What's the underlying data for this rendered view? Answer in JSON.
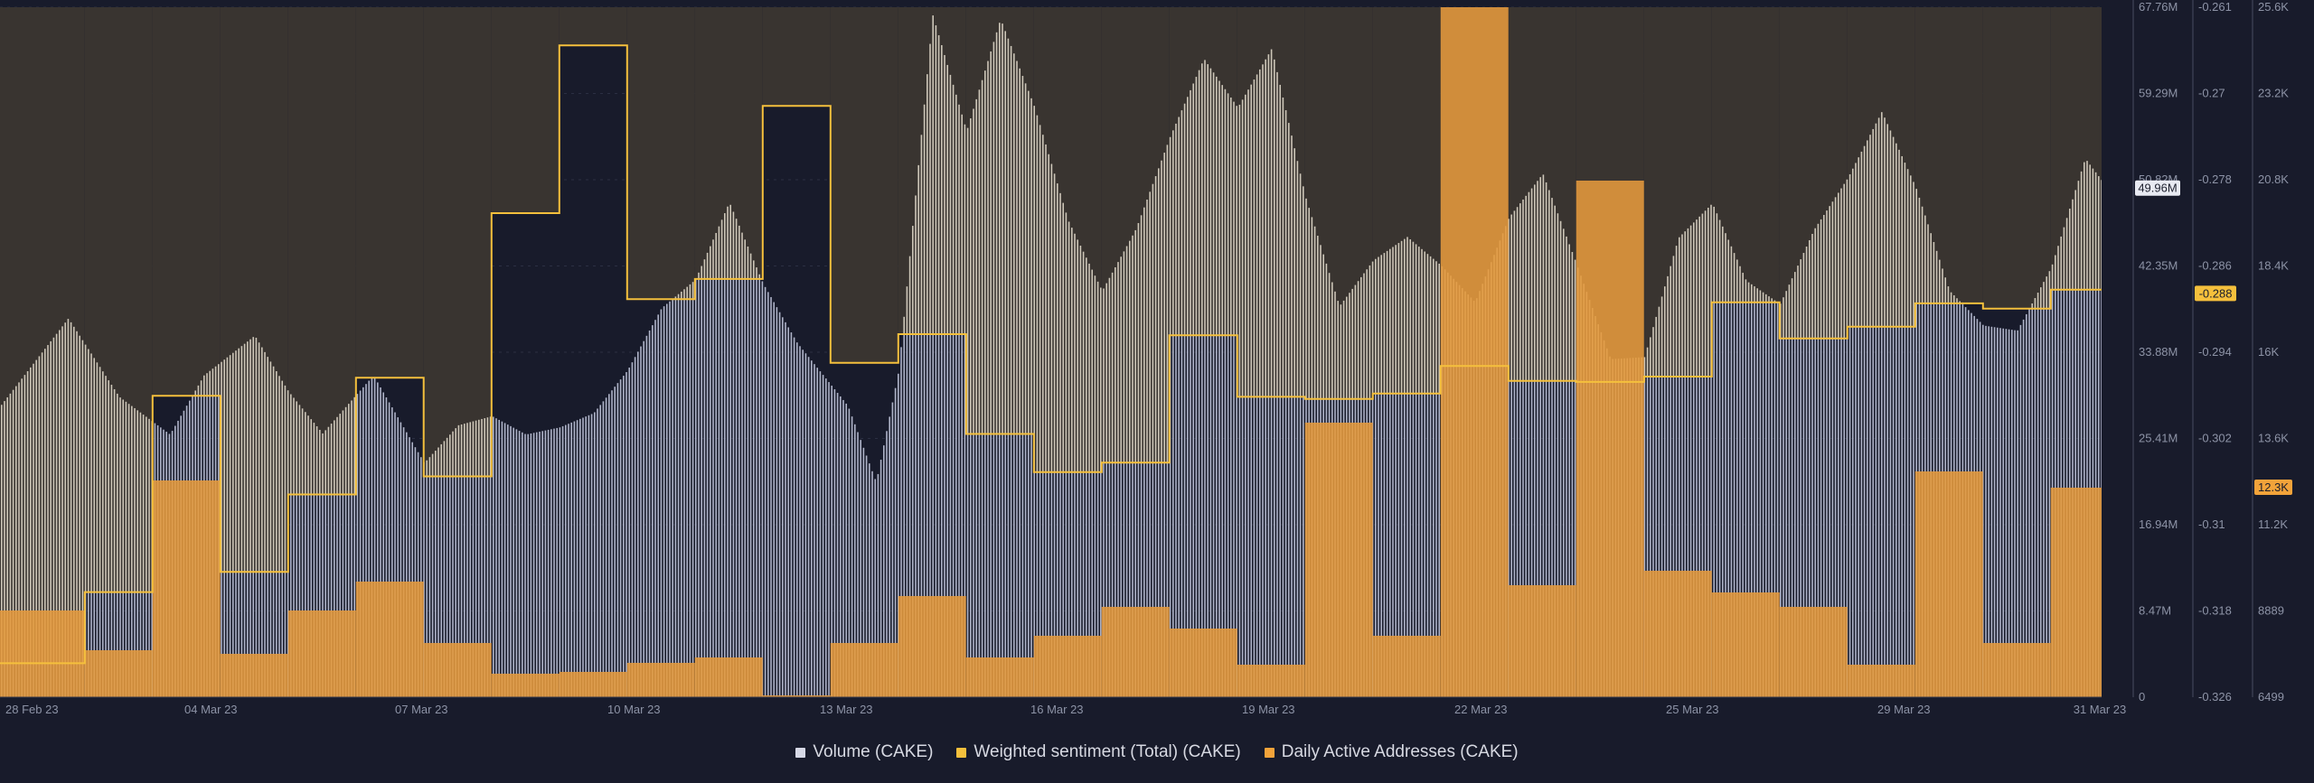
{
  "chart_data": {
    "type": "bar",
    "title": "",
    "x_ticks": [
      "28 Feb 23",
      "04 Mar 23",
      "07 Mar 23",
      "10 Mar 23",
      "13 Mar 23",
      "16 Mar 23",
      "19 Mar 23",
      "22 Mar 23",
      "25 Mar 23",
      "29 Mar 23",
      "31 Mar 23"
    ],
    "x_range": [
      "2023-02-28",
      "2023-03-31"
    ],
    "axes": {
      "volume": {
        "ticks": [
          "67.76M",
          "59.29M",
          "50.82M",
          "42.35M",
          "33.88M",
          "25.41M",
          "16.94M",
          "8.47M",
          "0"
        ],
        "ylim": [
          0,
          67.76
        ],
        "unit": "M"
      },
      "sentiment": {
        "ticks": [
          "-0.261",
          "-0.27",
          "-0.278",
          "-0.286",
          "-0.294",
          "-0.302",
          "-0.31",
          "-0.318",
          "-0.326"
        ],
        "ylim": [
          -0.326,
          -0.261
        ]
      },
      "daa": {
        "ticks": [
          "25.6K",
          "23.2K",
          "20.8K",
          "18.4K",
          "16K",
          "13.6K",
          "11.2K",
          "8889",
          "6499"
        ],
        "ylim": [
          6499,
          25600
        ]
      }
    },
    "current_labels": {
      "volume": "49.96M",
      "sentiment": "-0.288",
      "daa": "12.3K"
    },
    "legend": [
      {
        "name": "Volume (CAKE)",
        "color": "#d6d8e6"
      },
      {
        "name": "Weighted sentiment (Total) (CAKE)",
        "color": "#f5c03c"
      },
      {
        "name": "Daily Active Addresses (CAKE)",
        "color": "#f2a33a"
      }
    ],
    "sentiment_series": [
      {
        "from": "2023-02-28T00:00",
        "to": "2023-03-01T06:00",
        "value": -0.3228
      },
      {
        "from": "2023-03-01T06:00",
        "to": "2023-03-02T06:00",
        "value": -0.3161
      },
      {
        "from": "2023-03-02T06:00",
        "to": "2023-03-03T06:00",
        "value": -0.2976
      },
      {
        "from": "2023-03-03T06:00",
        "to": "2023-03-04T06:00",
        "value": -0.3142
      },
      {
        "from": "2023-03-04T06:00",
        "to": "2023-03-05T06:00",
        "value": -0.3069
      },
      {
        "from": "2023-03-05T06:00",
        "to": "2023-03-06T06:00",
        "value": -0.2959
      },
      {
        "from": "2023-03-06T06:00",
        "to": "2023-03-07T06:00",
        "value": -0.3052
      },
      {
        "from": "2023-03-07T06:00",
        "to": "2023-03-08T06:00",
        "value": -0.2804
      },
      {
        "from": "2023-03-08T06:00",
        "to": "2023-03-09T06:00",
        "value": -0.2646
      },
      {
        "from": "2023-03-09T06:00",
        "to": "2023-03-10T06:00",
        "value": -0.2885
      },
      {
        "from": "2023-03-10T06:00",
        "to": "2023-03-11T06:00",
        "value": -0.2866
      },
      {
        "from": "2023-03-11T06:00",
        "to": "2023-03-12T06:00",
        "value": -0.2703
      },
      {
        "from": "2023-03-12T06:00",
        "to": "2023-03-13T06:00",
        "value": -0.2945
      },
      {
        "from": "2023-03-13T06:00",
        "to": "2023-03-14T06:00",
        "value": -0.2918
      },
      {
        "from": "2023-03-14T06:00",
        "to": "2023-03-15T06:00",
        "value": -0.3012
      },
      {
        "from": "2023-03-15T06:00",
        "to": "2023-03-16T06:00",
        "value": -0.3048
      },
      {
        "from": "2023-03-16T06:00",
        "to": "2023-03-17T06:00",
        "value": -0.3039
      },
      {
        "from": "2023-03-17T06:00",
        "to": "2023-03-18T06:00",
        "value": -0.2919
      },
      {
        "from": "2023-03-18T06:00",
        "to": "2023-03-19T06:00",
        "value": -0.2977
      },
      {
        "from": "2023-03-19T06:00",
        "to": "2023-03-20T06:00",
        "value": -0.2979
      },
      {
        "from": "2023-03-20T06:00",
        "to": "2023-03-21T06:00",
        "value": -0.2974
      },
      {
        "from": "2023-03-21T06:00",
        "to": "2023-03-22T06:00",
        "value": -0.2948
      },
      {
        "from": "2023-03-22T06:00",
        "to": "2023-03-23T06:00",
        "value": -0.2962
      },
      {
        "from": "2023-03-23T06:00",
        "to": "2023-03-24T06:00",
        "value": -0.2963
      },
      {
        "from": "2023-03-24T06:00",
        "to": "2023-03-25T06:00",
        "value": -0.2958
      },
      {
        "from": "2023-03-25T06:00",
        "to": "2023-03-26T06:00",
        "value": -0.2888
      },
      {
        "from": "2023-03-26T06:00",
        "to": "2023-03-27T06:00",
        "value": -0.2922
      },
      {
        "from": "2023-03-27T06:00",
        "to": "2023-03-28T06:00",
        "value": -0.2911
      },
      {
        "from": "2023-03-28T06:00",
        "to": "2023-03-29T06:00",
        "value": -0.2889
      },
      {
        "from": "2023-03-29T06:00",
        "to": "2023-03-30T06:00",
        "value": -0.2894
      },
      {
        "from": "2023-03-30T06:00",
        "to": "2023-03-31T00:00",
        "value": -0.2876
      }
    ],
    "daa_series": [
      {
        "from": "2023-02-28T00:00",
        "to": "2023-03-01T06:00",
        "value": 8900
      },
      {
        "from": "2023-03-01T06:00",
        "to": "2023-03-02T06:00",
        "value": 7800
      },
      {
        "from": "2023-03-02T06:00",
        "to": "2023-03-03T06:00",
        "value": 12500
      },
      {
        "from": "2023-03-03T06:00",
        "to": "2023-03-04T06:00",
        "value": 7700
      },
      {
        "from": "2023-03-04T06:00",
        "to": "2023-03-05T06:00",
        "value": 8900
      },
      {
        "from": "2023-03-05T06:00",
        "to": "2023-03-06T06:00",
        "value": 9700
      },
      {
        "from": "2023-03-06T06:00",
        "to": "2023-03-07T06:00",
        "value": 8000
      },
      {
        "from": "2023-03-07T06:00",
        "to": "2023-03-08T06:00",
        "value": 7150
      },
      {
        "from": "2023-03-08T06:00",
        "to": "2023-03-09T06:00",
        "value": 7200
      },
      {
        "from": "2023-03-09T06:00",
        "to": "2023-03-10T06:00",
        "value": 7450
      },
      {
        "from": "2023-03-10T06:00",
        "to": "2023-03-11T06:00",
        "value": 7600
      },
      {
        "from": "2023-03-11T06:00",
        "to": "2023-03-12T06:00",
        "value": 6550
      },
      {
        "from": "2023-03-12T06:00",
        "to": "2023-03-13T06:00",
        "value": 8000
      },
      {
        "from": "2023-03-13T06:00",
        "to": "2023-03-14T06:00",
        "value": 9300
      },
      {
        "from": "2023-03-14T06:00",
        "to": "2023-03-15T06:00",
        "value": 7600
      },
      {
        "from": "2023-03-15T06:00",
        "to": "2023-03-16T06:00",
        "value": 8200
      },
      {
        "from": "2023-03-16T06:00",
        "to": "2023-03-17T06:00",
        "value": 9000
      },
      {
        "from": "2023-03-17T06:00",
        "to": "2023-03-18T06:00",
        "value": 8400
      },
      {
        "from": "2023-03-18T06:00",
        "to": "2023-03-19T06:00",
        "value": 7400
      },
      {
        "from": "2023-03-19T06:00",
        "to": "2023-03-20T06:00",
        "value": 14100
      },
      {
        "from": "2023-03-20T06:00",
        "to": "2023-03-21T06:00",
        "value": 8200
      },
      {
        "from": "2023-03-21T06:00",
        "to": "2023-03-22T06:00",
        "value": 25600
      },
      {
        "from": "2023-03-22T06:00",
        "to": "2023-03-23T06:00",
        "value": 9600
      },
      {
        "from": "2023-03-23T06:00",
        "to": "2023-03-24T06:00",
        "value": 20800
      },
      {
        "from": "2023-03-24T06:00",
        "to": "2023-03-25T06:00",
        "value": 10000
      },
      {
        "from": "2023-03-25T06:00",
        "to": "2023-03-26T06:00",
        "value": 9400
      },
      {
        "from": "2023-03-26T06:00",
        "to": "2023-03-27T06:00",
        "value": 9000
      },
      {
        "from": "2023-03-27T06:00",
        "to": "2023-03-28T06:00",
        "value": 7400
      },
      {
        "from": "2023-03-28T06:00",
        "to": "2023-03-29T06:00",
        "value": 12750
      },
      {
        "from": "2023-03-29T06:00",
        "to": "2023-03-30T06:00",
        "value": 8000
      },
      {
        "from": "2023-03-30T06:00",
        "to": "2023-03-31T00:00",
        "value": 12300
      }
    ],
    "volume_series": [
      {
        "date": "2023-02-28T00:00",
        "value": 28.6
      },
      {
        "date": "2023-03-01T00:00",
        "value": 37.2
      },
      {
        "date": "2023-03-01T18:00",
        "value": 29.5
      },
      {
        "date": "2023-03-02T12:00",
        "value": 25.8
      },
      {
        "date": "2023-03-03T00:00",
        "value": 31.6
      },
      {
        "date": "2023-03-03T18:00",
        "value": 35.5
      },
      {
        "date": "2023-03-04T06:00",
        "value": 30.0
      },
      {
        "date": "2023-03-04T18:00",
        "value": 25.9
      },
      {
        "date": "2023-03-05T12:00",
        "value": 31.6
      },
      {
        "date": "2023-03-06T06:00",
        "value": 23.0
      },
      {
        "date": "2023-03-06T18:00",
        "value": 26.7
      },
      {
        "date": "2023-03-07T06:00",
        "value": 27.6
      },
      {
        "date": "2023-03-07T18:00",
        "value": 25.8
      },
      {
        "date": "2023-03-08T06:00",
        "value": 26.5
      },
      {
        "date": "2023-03-08T18:00",
        "value": 27.9
      },
      {
        "date": "2023-03-09T06:00",
        "value": 32.1
      },
      {
        "date": "2023-03-09T18:00",
        "value": 38.2
      },
      {
        "date": "2023-03-10T06:00",
        "value": 41.0
      },
      {
        "date": "2023-03-10T18:00",
        "value": 48.6
      },
      {
        "date": "2023-03-11T06:00",
        "value": 40.6
      },
      {
        "date": "2023-03-11T18:00",
        "value": 34.8
      },
      {
        "date": "2023-03-12T12:00",
        "value": 28.6
      },
      {
        "date": "2023-03-12T22:00",
        "value": 21.1
      },
      {
        "date": "2023-03-13T06:00",
        "value": 32.1
      },
      {
        "date": "2023-03-13T18:00",
        "value": 67.0
      },
      {
        "date": "2023-03-14T06:00",
        "value": 55.6
      },
      {
        "date": "2023-03-14T18:00",
        "value": 66.6
      },
      {
        "date": "2023-03-15T06:00",
        "value": 58.0
      },
      {
        "date": "2023-03-15T18:00",
        "value": 46.8
      },
      {
        "date": "2023-03-16T06:00",
        "value": 39.9
      },
      {
        "date": "2023-03-16T18:00",
        "value": 46.0
      },
      {
        "date": "2023-03-17T06:00",
        "value": 55.0
      },
      {
        "date": "2023-03-17T18:00",
        "value": 62.7
      },
      {
        "date": "2023-03-18T06:00",
        "value": 57.9
      },
      {
        "date": "2023-03-18T18:00",
        "value": 63.7
      },
      {
        "date": "2023-03-19T06:00",
        "value": 49.1
      },
      {
        "date": "2023-03-19T18:00",
        "value": 38.4
      },
      {
        "date": "2023-03-20T06:00",
        "value": 42.9
      },
      {
        "date": "2023-03-20T18:00",
        "value": 45.2
      },
      {
        "date": "2023-03-21T06:00",
        "value": 42.4
      },
      {
        "date": "2023-03-21T18:00",
        "value": 38.8
      },
      {
        "date": "2023-03-22T06:00",
        "value": 47.1
      },
      {
        "date": "2023-03-22T18:00",
        "value": 51.4
      },
      {
        "date": "2023-03-23T06:00",
        "value": 42.5
      },
      {
        "date": "2023-03-23T18:00",
        "value": 33.2
      },
      {
        "date": "2023-03-24T06:00",
        "value": 33.4
      },
      {
        "date": "2023-03-24T18:00",
        "value": 45.1
      },
      {
        "date": "2023-03-25T06:00",
        "value": 48.5
      },
      {
        "date": "2023-03-25T18:00",
        "value": 40.9
      },
      {
        "date": "2023-03-26T06:00",
        "value": 38.6
      },
      {
        "date": "2023-03-26T18:00",
        "value": 45.9
      },
      {
        "date": "2023-03-27T06:00",
        "value": 51.0
      },
      {
        "date": "2023-03-27T18:00",
        "value": 57.5
      },
      {
        "date": "2023-03-28T06:00",
        "value": 50.1
      },
      {
        "date": "2023-03-28T18:00",
        "value": 39.9
      },
      {
        "date": "2023-03-29T06:00",
        "value": 36.5
      },
      {
        "date": "2023-03-29T18:00",
        "value": 36.0
      },
      {
        "date": "2023-03-30T06:00",
        "value": 42.2
      },
      {
        "date": "2023-03-30T18:00",
        "value": 52.9
      },
      {
        "date": "2023-03-31T00:00",
        "value": 50.7
      }
    ]
  }
}
